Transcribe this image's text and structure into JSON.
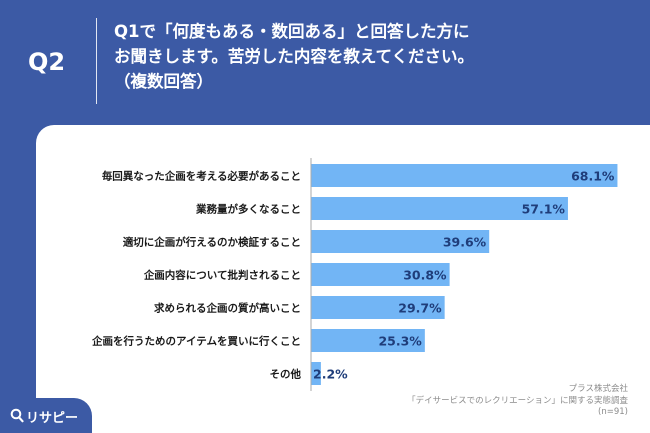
{
  "header": {
    "q_label": "Q2",
    "question_lines": [
      "Q1で「何度もある・数回ある」と回答した方に",
      "お聞きします。苦労した内容を教えてください。",
      "（複数回答）"
    ]
  },
  "chart_data": {
    "type": "bar",
    "orientation": "horizontal",
    "categories": [
      "毎回異なった企画を考える必要があること",
      "業務量が多くなること",
      "適切に企画が行えるのか検証すること",
      "企画内容について批判されること",
      "求められる企画の質が高いこと",
      "企画を行うためのアイテムを買いに行くこと",
      "その他"
    ],
    "values": [
      68.1,
      57.1,
      39.6,
      30.8,
      29.7,
      25.3,
      2.2
    ],
    "value_labels": [
      "68.1%",
      "57.1%",
      "39.6%",
      "30.8%",
      "29.7%",
      "25.3%",
      "2.2%"
    ],
    "xlim": [
      0,
      100
    ],
    "bar_color": "#72b5f5",
    "axis_color": "#aaaaaa"
  },
  "source": {
    "lines": [
      "プラス株式会社",
      "「デイサービスでのレクリエーション」に関する実態調査",
      "(n=91)"
    ]
  },
  "logo": {
    "text": "リサピー",
    "icon": "magnifier-icon"
  },
  "colors": {
    "background": "#3c5aa5",
    "panel": "#ffffff",
    "text_dark": "#1a1a1a"
  }
}
